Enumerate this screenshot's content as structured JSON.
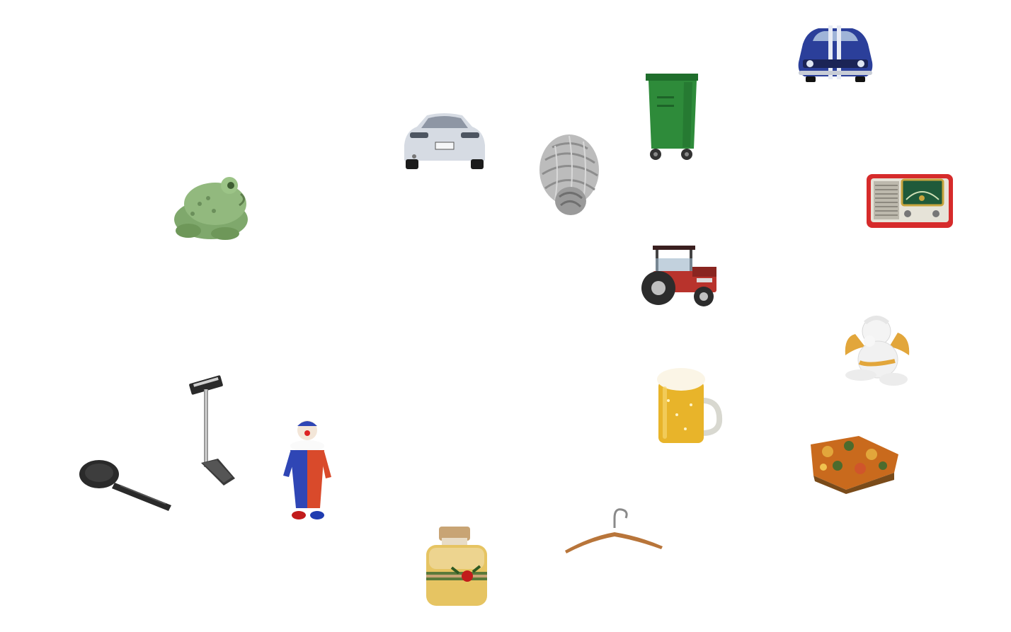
{
  "canvas": {
    "background": "#ffffff"
  },
  "objects": [
    {
      "id": "muscle-car",
      "icon": "blue-muscle-car-icon",
      "color": "#2b3f9a"
    },
    {
      "id": "trash-bin",
      "icon": "green-wheelie-bin-icon",
      "color": "#2e8b3a"
    },
    {
      "id": "sports-car",
      "icon": "silver-sports-car-icon",
      "color": "#cfd4dc"
    },
    {
      "id": "yarn-ball",
      "icon": "gray-yarn-ball-icon",
      "color": "#b8b8b8"
    },
    {
      "id": "frog",
      "icon": "green-frog-figurine-icon",
      "color": "#8fb37a"
    },
    {
      "id": "radio",
      "icon": "red-retro-radio-icon",
      "color": "#d62b2b"
    },
    {
      "id": "tractor",
      "icon": "red-tractor-icon",
      "color": "#b8332c"
    },
    {
      "id": "angel",
      "icon": "cherub-figurine-icon",
      "color": "#f1f1f1"
    },
    {
      "id": "beer",
      "icon": "beer-mug-icon",
      "color": "#e8b42a"
    },
    {
      "id": "pillow",
      "icon": "floral-cushion-icon",
      "color": "#c96a1d"
    },
    {
      "id": "scale",
      "icon": "weighing-scale-icon",
      "color": "#3a3a3a"
    },
    {
      "id": "ladle",
      "icon": "black-ladle-icon",
      "color": "#2a2a2a"
    },
    {
      "id": "clown",
      "icon": "clown-doll-icon",
      "color": "#2f46b5"
    },
    {
      "id": "hanger",
      "icon": "wooden-hanger-icon",
      "color": "#b8753a"
    },
    {
      "id": "candle-jar",
      "icon": "candle-jar-icon",
      "color": "#e6c462"
    }
  ]
}
